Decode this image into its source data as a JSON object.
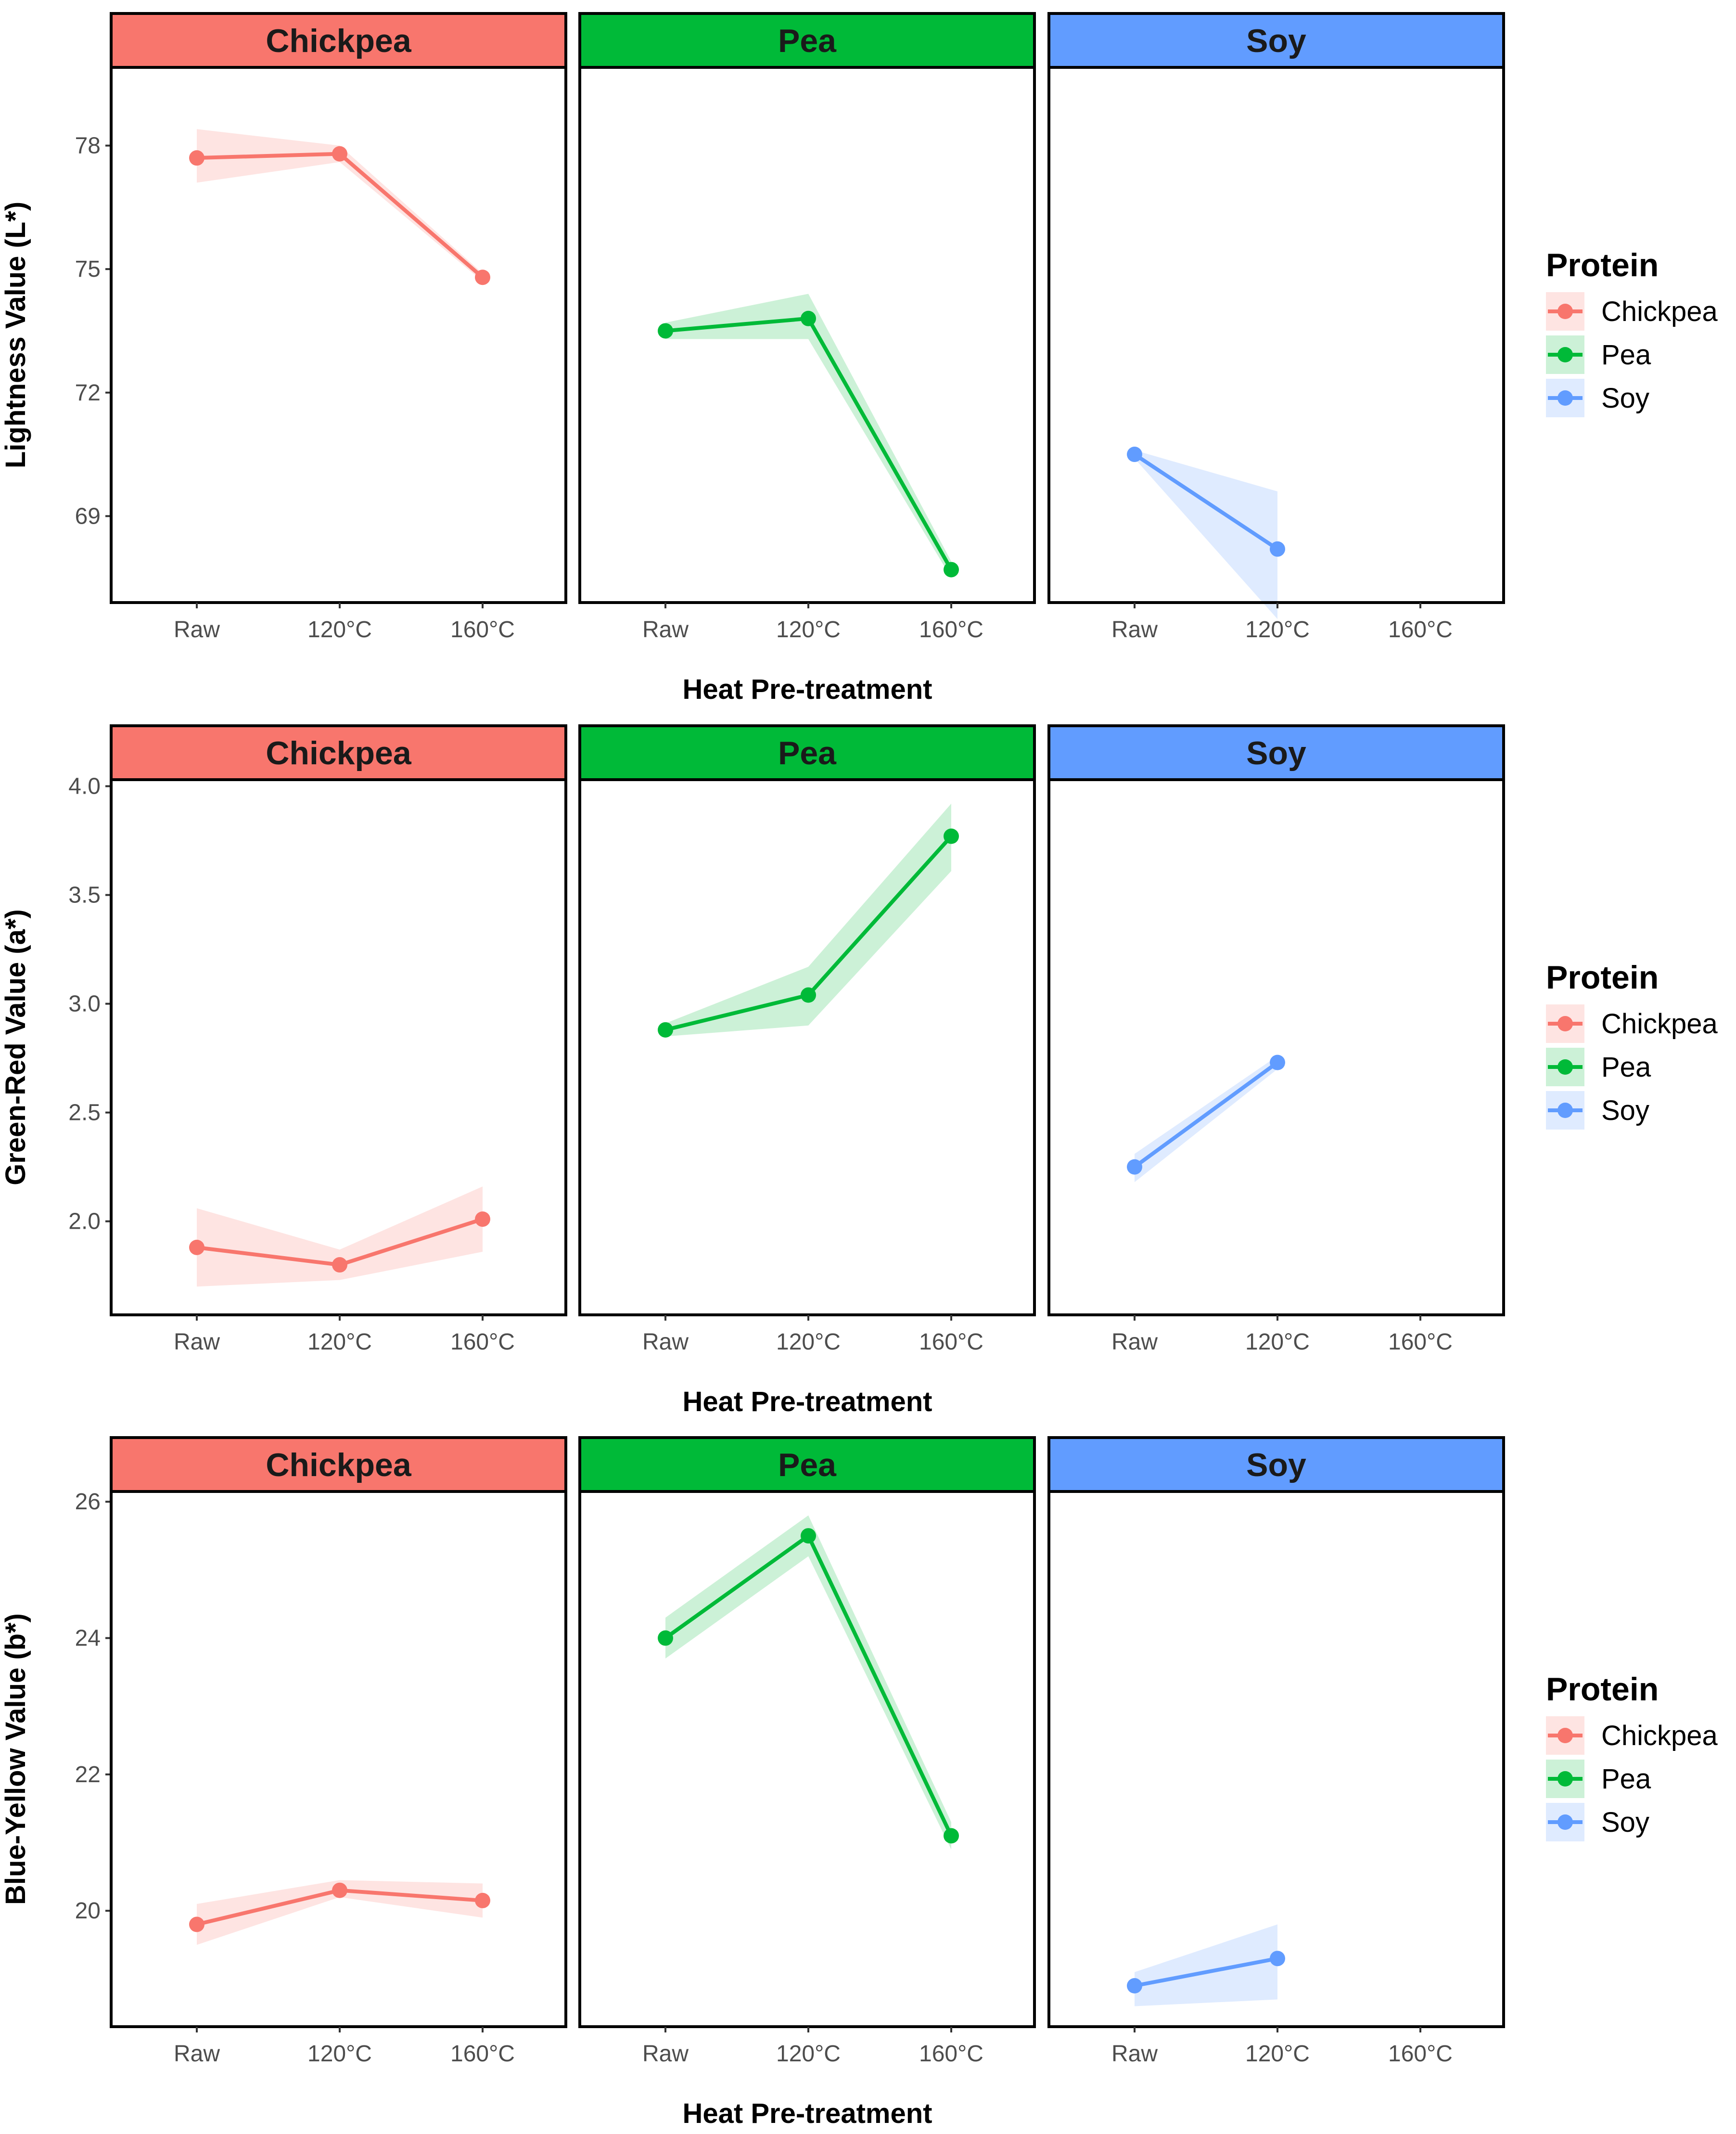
{
  "groups": [
    "Chickpea",
    "Pea",
    "Soy"
  ],
  "colors": {
    "Chickpea": "#F8766D",
    "Pea": "#00BA38",
    "Soy": "#619CFF"
  },
  "x_categories": [
    "Raw",
    "120°C",
    "160°C"
  ],
  "legend_title": "Protein",
  "chart_data": [
    {
      "type": "line",
      "metric": "L*",
      "ylabel": "Lightness Value (L*)",
      "xlabel": "Heat Pre-treatment",
      "ylim": [
        66.9,
        79.9
      ],
      "yticks": [
        69,
        72,
        75,
        78
      ],
      "ytick_labels": [
        "69",
        "72",
        "75",
        "78"
      ],
      "series": [
        {
          "name": "Chickpea",
          "values": [
            77.7,
            77.8,
            74.8
          ],
          "lower": [
            77.1,
            77.6,
            74.7
          ],
          "upper": [
            78.4,
            78.0,
            74.9
          ]
        },
        {
          "name": "Pea",
          "values": [
            73.5,
            73.8,
            67.7
          ],
          "lower": [
            73.3,
            73.3,
            67.5
          ],
          "upper": [
            73.7,
            74.4,
            67.9
          ]
        },
        {
          "name": "Soy",
          "values": [
            70.5,
            68.2,
            null
          ],
          "lower": [
            70.4,
            66.5,
            null
          ],
          "upper": [
            70.6,
            69.6,
            null
          ]
        }
      ]
    },
    {
      "type": "line",
      "metric": "a*",
      "ylabel": "Green-Red Value (a*)",
      "xlabel": "Heat Pre-treatment",
      "ylim": [
        1.57,
        4.03
      ],
      "yticks": [
        2.0,
        2.5,
        3.0,
        3.5,
        4.0
      ],
      "ytick_labels": [
        "2.0",
        "2.5",
        "3.0",
        "3.5",
        "4.0"
      ],
      "series": [
        {
          "name": "Chickpea",
          "values": [
            1.88,
            1.8,
            2.01
          ],
          "lower": [
            1.7,
            1.73,
            1.86
          ],
          "upper": [
            2.06,
            1.87,
            2.16
          ]
        },
        {
          "name": "Pea",
          "values": [
            2.88,
            3.04,
            3.77
          ],
          "lower": [
            2.85,
            2.9,
            3.61
          ],
          "upper": [
            2.91,
            3.17,
            3.92
          ]
        },
        {
          "name": "Soy",
          "values": [
            2.25,
            2.73,
            null
          ],
          "lower": [
            2.18,
            2.7,
            null
          ],
          "upper": [
            2.31,
            2.76,
            null
          ]
        }
      ]
    },
    {
      "type": "line",
      "metric": "b*",
      "ylabel": "Blue-Yellow Value (b*)",
      "xlabel": "Heat Pre-treatment",
      "ylim": [
        18.3,
        26.15
      ],
      "yticks": [
        20,
        22,
        24,
        26
      ],
      "ytick_labels": [
        "20",
        "22",
        "24",
        "26"
      ],
      "series": [
        {
          "name": "Chickpea",
          "values": [
            19.8,
            20.3,
            20.15
          ],
          "lower": [
            19.5,
            20.2,
            19.9
          ],
          "upper": [
            20.1,
            20.45,
            20.4
          ]
        },
        {
          "name": "Pea",
          "values": [
            24.0,
            25.5,
            21.1
          ],
          "lower": [
            23.7,
            25.2,
            20.9
          ],
          "upper": [
            24.3,
            25.8,
            21.3
          ]
        },
        {
          "name": "Soy",
          "values": [
            18.9,
            19.3,
            null
          ],
          "lower": [
            18.6,
            18.7,
            null
          ],
          "upper": [
            19.1,
            19.8,
            null
          ]
        }
      ]
    }
  ]
}
